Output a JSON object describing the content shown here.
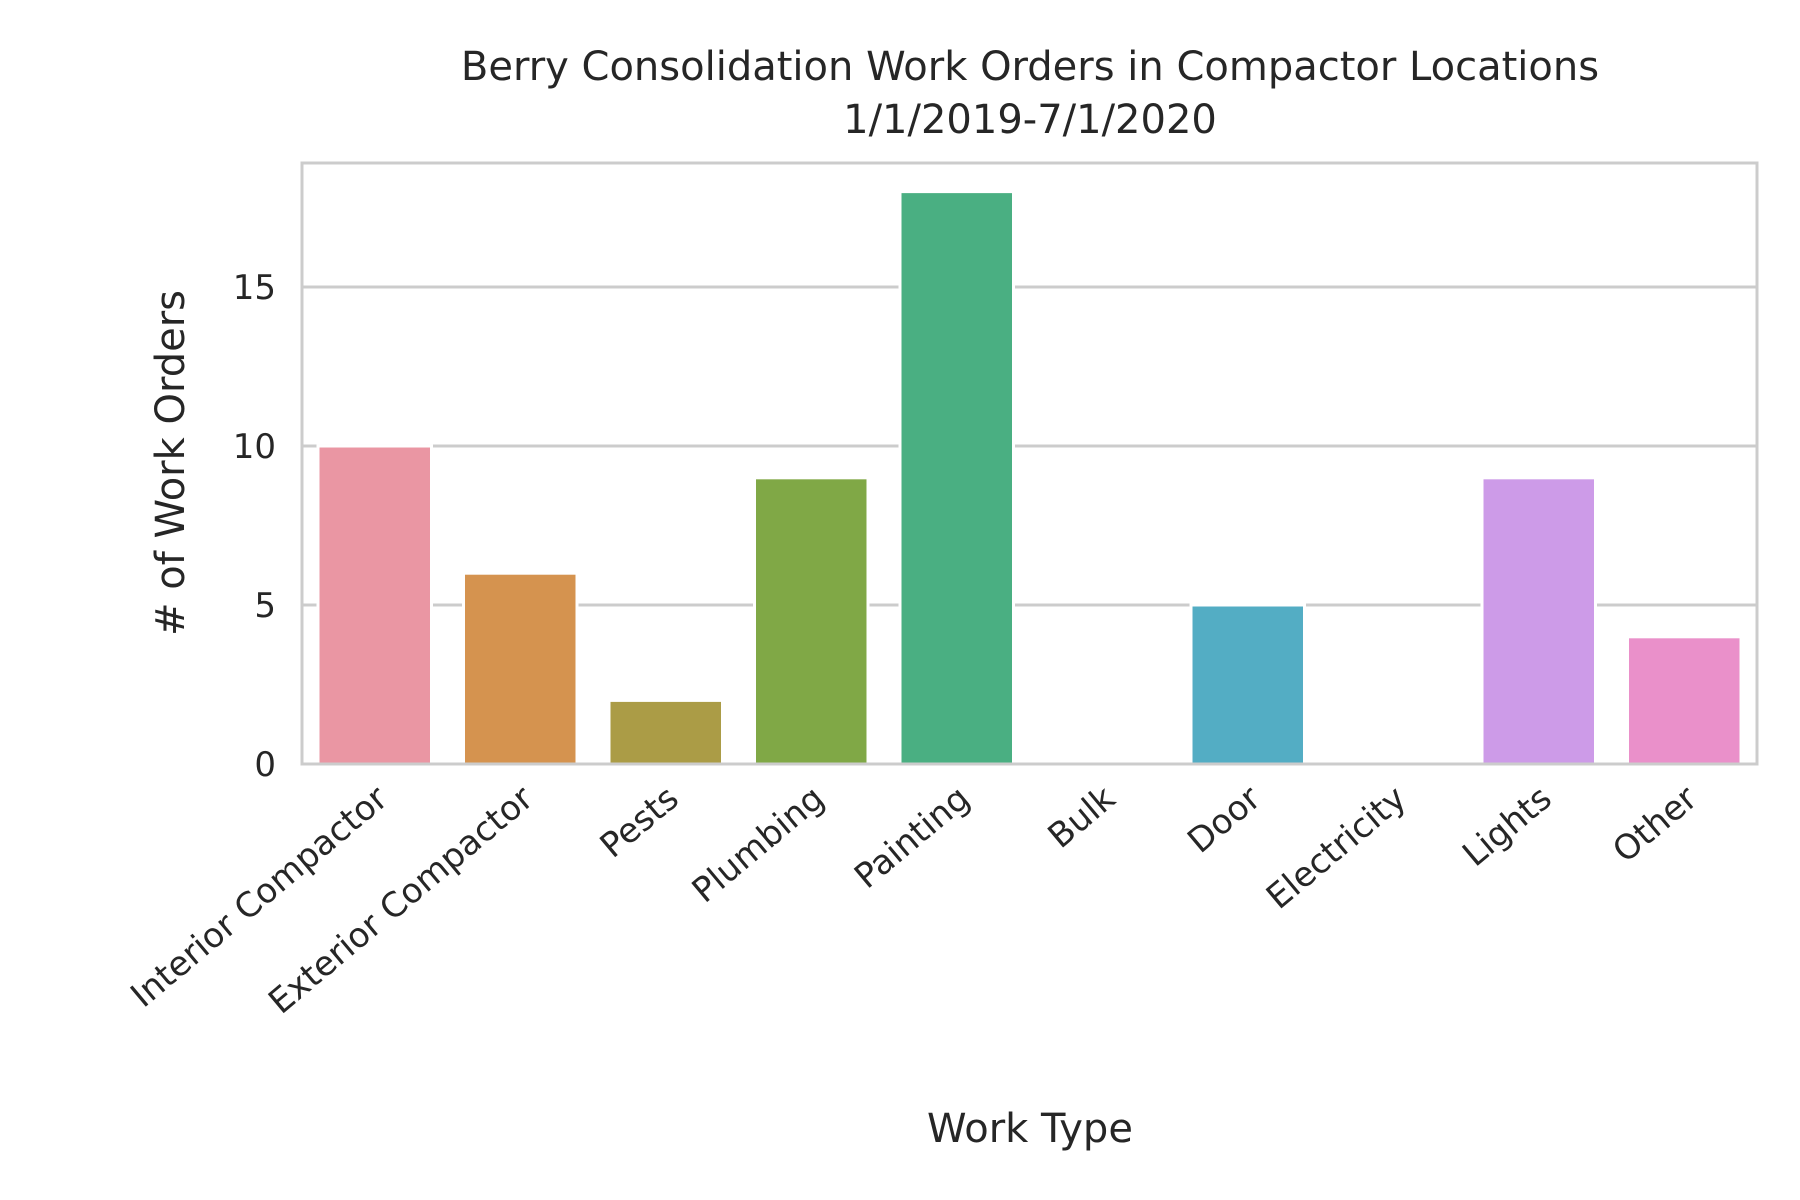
{
  "chart_data": {
    "type": "bar",
    "title": "Berry Consolidation Work Orders in Compactor Locations",
    "subtitle": "1/1/2019-7/1/2020",
    "xlabel": "Work Type",
    "ylabel": "# of Work Orders",
    "categories": [
      "Interior Compactor",
      "Exterior Compactor",
      "Pests",
      "Plumbing",
      "Painting",
      "Bulk",
      "Door",
      "Electricity",
      "Lights",
      "Other"
    ],
    "values": [
      10,
      6,
      2,
      9,
      18,
      0,
      5,
      0,
      9,
      4
    ],
    "colors": [
      "#ea96a3",
      "#d5934f",
      "#ab9c46",
      "#80a846",
      "#4aaf82",
      "#4dad9c",
      "#53adc4",
      "#8fa6e8",
      "#cd9be8",
      "#ea90ca"
    ],
    "ylim": [
      0,
      18.9
    ],
    "yticks": [
      0,
      5,
      10,
      15
    ],
    "grid": "horizontal",
    "style": {
      "grid_color": "#cccccc",
      "spine_color": "#cccccc",
      "text_color": "#262626"
    }
  }
}
